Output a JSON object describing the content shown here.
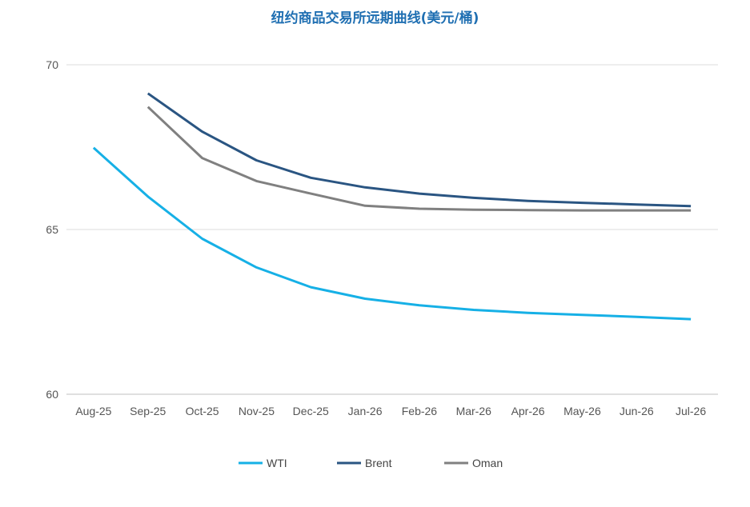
{
  "chart_data": {
    "type": "line",
    "title": "纽约商品交易所远期曲线(美元/桶)",
    "xlabel": "",
    "ylabel": "",
    "categories": [
      "Aug-25",
      "Sep-25",
      "Oct-25",
      "Nov-25",
      "Dec-25",
      "Jan-26",
      "Feb-26",
      "Mar-26",
      "Apr-26",
      "May-26",
      "Jun-26",
      "Jul-26"
    ],
    "ylim": [
      60,
      70
    ],
    "yticks": [
      60,
      65,
      70
    ],
    "grid": true,
    "legend_position": "bottom",
    "series": [
      {
        "name": "WTI",
        "color": "#16b0e6",
        "values": [
          67.48,
          66.0,
          64.72,
          63.85,
          63.25,
          62.9,
          62.7,
          62.56,
          62.47,
          62.41,
          62.35,
          62.28
        ]
      },
      {
        "name": "Brent",
        "color": "#2a5582",
        "values": [
          null,
          69.13,
          67.97,
          67.1,
          66.57,
          66.28,
          66.09,
          65.96,
          65.87,
          65.81,
          65.76,
          65.71
        ]
      },
      {
        "name": "Oman",
        "color": "#808080",
        "values": [
          null,
          68.72,
          67.17,
          66.47,
          66.09,
          65.72,
          65.63,
          65.6,
          65.59,
          65.58,
          65.58,
          65.58
        ]
      }
    ]
  }
}
